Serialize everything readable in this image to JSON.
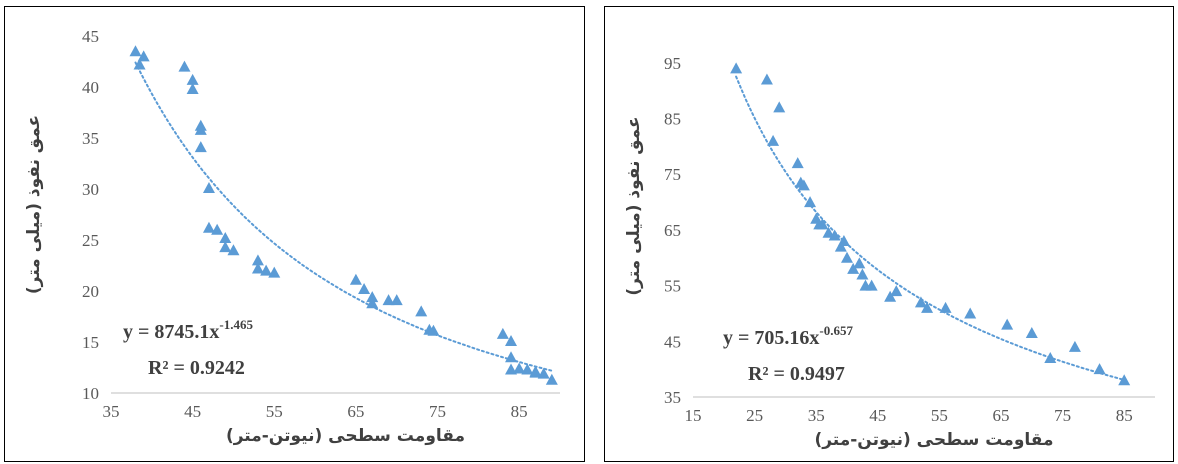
{
  "chart_data": [
    {
      "type": "scatter",
      "xlabel": "مقاومت سطحی (نیوتن-متر)",
      "ylabel": "عمق نفوذ (میلی متر)",
      "xlim": [
        35,
        90
      ],
      "ylim": [
        10,
        45
      ],
      "xticks": [
        "35",
        "45",
        "55",
        "65",
        "75",
        "85"
      ],
      "yticks": [
        "10",
        "15",
        "20",
        "25",
        "30",
        "35",
        "40",
        "45"
      ],
      "trendline": {
        "type": "power",
        "a": 8745.1,
        "b": -1.465,
        "style": "dotted"
      },
      "equation": {
        "prefix": "y = 8745.1x",
        "exponent": "-1.465"
      },
      "r2_text": "R² = 0.9242",
      "marker_color": "#5B9BD5",
      "series": [
        {
          "x": [
            38,
            38.5,
            39,
            44,
            45,
            45,
            46,
            46,
            46,
            47,
            47,
            48,
            49,
            49,
            50,
            53,
            53,
            54,
            55,
            65,
            66,
            67,
            67,
            69,
            70,
            73,
            74,
            74.5,
            83,
            84,
            84,
            84,
            85,
            86,
            87,
            87,
            88,
            89
          ],
          "y": [
            43.5,
            42.2,
            43,
            42,
            40.7,
            39.8,
            36.2,
            35.8,
            34.1,
            30.1,
            26.2,
            26,
            25.2,
            24.3,
            24,
            23,
            22.2,
            22,
            21.8,
            21.1,
            20.2,
            19.4,
            18.8,
            19.1,
            19.1,
            18,
            16.2,
            16.1,
            15.8,
            15.1,
            13.5,
            12.3,
            12.4,
            12.3,
            12.1,
            12,
            11.9,
            11.3
          ]
        }
      ]
    },
    {
      "type": "scatter",
      "xlabel": "مقاومت سطحی (نیوتن-متر)",
      "ylabel": "عمق نفوذ (میلی متر)",
      "xlim": [
        15,
        90
      ],
      "ylim": [
        35,
        100
      ],
      "xticks": [
        "15",
        "25",
        "35",
        "45",
        "55",
        "65",
        "75",
        "85"
      ],
      "yticks": [
        "35",
        "45",
        "55",
        "65",
        "75",
        "85",
        "95"
      ],
      "trendline": {
        "type": "power",
        "a": 705.16,
        "b": -0.657,
        "style": "dotted"
      },
      "equation": {
        "prefix": "y = 705.16x",
        "exponent": "-0.657"
      },
      "r2_text": "R² = 0.9497",
      "marker_color": "#5B9BD5",
      "series": [
        {
          "x": [
            22,
            27,
            28,
            29,
            32,
            32.5,
            33,
            34,
            35,
            35.5,
            36,
            37,
            38,
            39,
            39.5,
            40,
            41,
            42,
            42.5,
            43,
            44,
            47,
            48,
            52,
            53,
            56,
            60,
            66,
            70,
            73,
            77,
            81,
            85
          ],
          "y": [
            94,
            92,
            81,
            87,
            77,
            73.5,
            73,
            70,
            67,
            66,
            66,
            64.5,
            64,
            62,
            63,
            60,
            58,
            59,
            57,
            55,
            55,
            53,
            54,
            52,
            51,
            51,
            50,
            48,
            46.5,
            42,
            44,
            40,
            38
          ]
        }
      ]
    }
  ]
}
